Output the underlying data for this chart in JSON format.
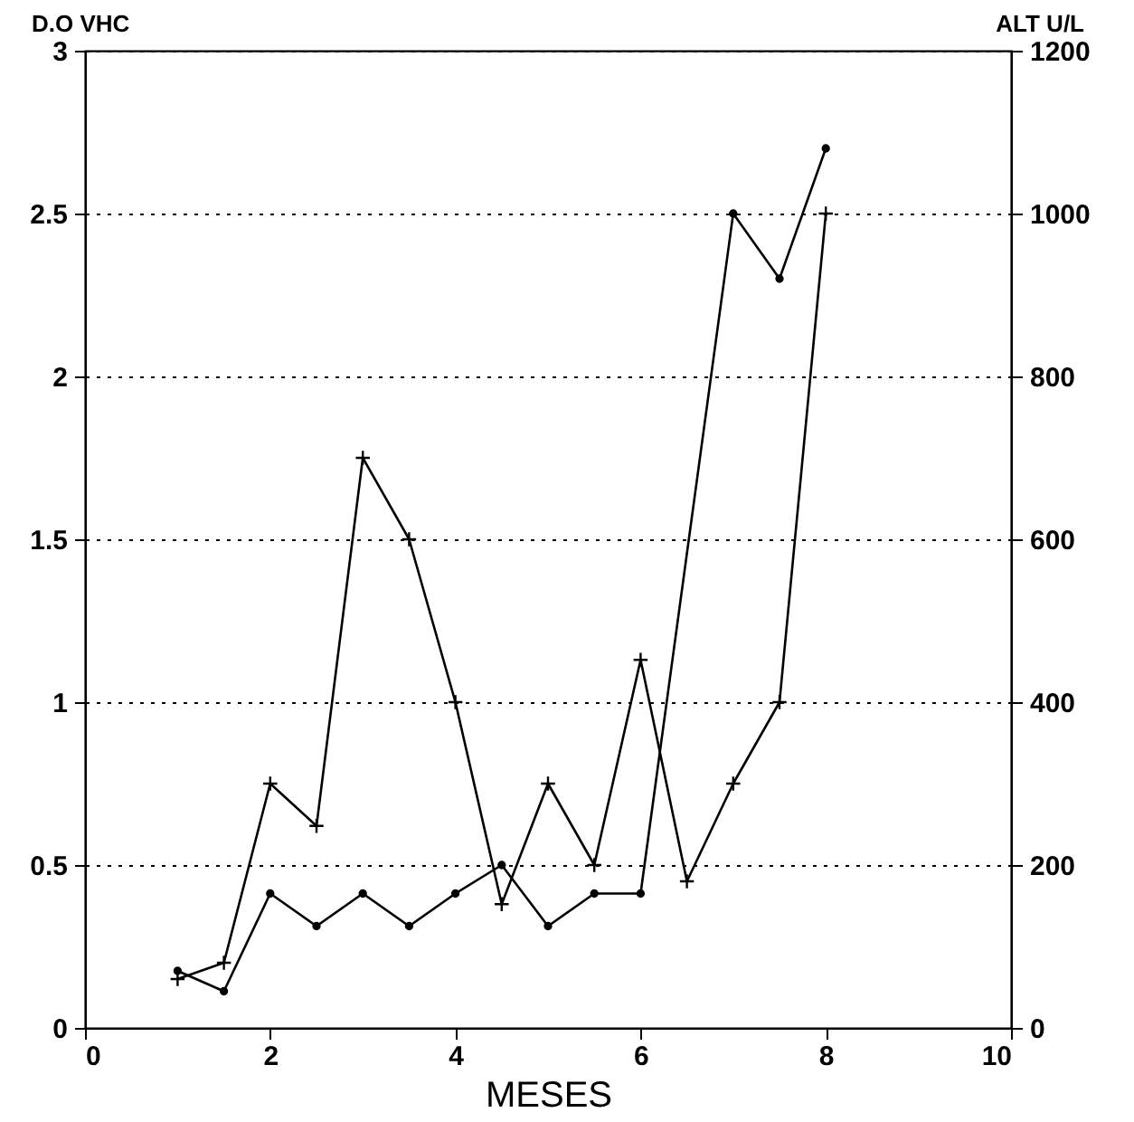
{
  "chart_data": {
    "type": "line",
    "xlabel": "MESES",
    "ylabel": "D.O VHC",
    "y2label": "ALT U/L",
    "x": [
      1,
      1.5,
      2,
      2.5,
      3,
      3.5,
      4,
      4.5,
      5,
      5.5,
      6,
      6.5,
      7,
      7.5,
      8
    ],
    "series": [
      {
        "color": "#000000",
        "marker": "cross",
        "values": [
          0.15,
          0.2,
          0.75,
          0.62,
          1.75,
          1.5,
          1.0,
          0.38,
          0.75,
          0.5,
          1.13,
          0.45,
          0.75,
          1.0,
          2.5
        ]
      },
      {
        "color": "#000000",
        "marker": "circle",
        "axis": "y2",
        "x": [
          1,
          1.5,
          2,
          2.5,
          3,
          3.5,
          4,
          4.5,
          5,
          5.5,
          6,
          7,
          7.5,
          8
        ],
        "values": [
          70,
          45,
          165,
          125,
          165,
          125,
          165,
          200,
          125,
          165,
          165,
          1000,
          920,
          1080
        ]
      }
    ],
    "xlim": [
      0,
      10
    ],
    "xticks": [
      0,
      2,
      4,
      6,
      8,
      10
    ],
    "ylim": [
      0,
      3
    ],
    "yticks": [
      0,
      0.5,
      1,
      1.5,
      2,
      2.5,
      3
    ],
    "y2lim": [
      0,
      1200
    ],
    "y2ticks": [
      0,
      200,
      400,
      600,
      800,
      1000,
      1200
    ],
    "grid": "y",
    "line_style": "solid"
  }
}
